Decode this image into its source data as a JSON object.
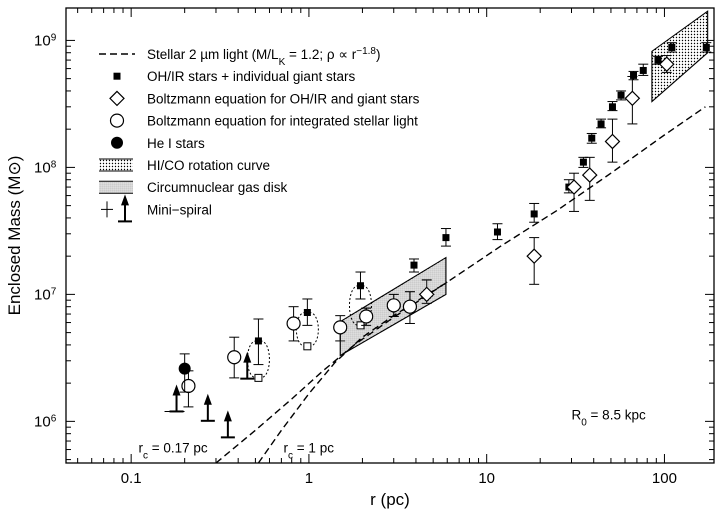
{
  "chart_data": {
    "type": "scatter",
    "xlabel": "r (pc)",
    "ylabel": "Enclosed Mass (M⊙)",
    "x_scale": "log",
    "y_scale": "log",
    "xlim": [
      0.043,
      190
    ],
    "ylim": [
      470000,
      1800000000
    ],
    "x_ticks": [
      {
        "value": 0.1,
        "label": "0.1"
      },
      {
        "value": 1,
        "label": "1"
      },
      {
        "value": 10,
        "label": "10"
      },
      {
        "value": 100,
        "label": "100"
      }
    ],
    "y_ticks": [
      {
        "value": 1000000,
        "base": "10",
        "exp": "6"
      },
      {
        "value": 10000000,
        "base": "10",
        "exp": "7"
      },
      {
        "value": 100000000,
        "base": "10",
        "exp": "8"
      },
      {
        "value": 1000000000,
        "base": "10",
        "exp": "9"
      }
    ],
    "legend": [
      {
        "symbol": "dashed-line",
        "label": "Stellar 2 µm light (M/L",
        "sub": "K",
        "label2": " = 1.2; ρ ∝ r",
        "sup": "−1.8",
        "label3": ")"
      },
      {
        "symbol": "filled-square",
        "label": "OH/IR stars + individual giant stars"
      },
      {
        "symbol": "open-diamond",
        "label": "Boltzmann equation for OH/IR and giant stars"
      },
      {
        "symbol": "open-circle",
        "label": "Boltzmann equation for integrated stellar light"
      },
      {
        "symbol": "filled-circle",
        "label": "He I stars"
      },
      {
        "symbol": "hatched-band",
        "label": "HI/CO rotation curve"
      },
      {
        "symbol": "dotted-band",
        "label": "Circumnuclear gas disk"
      },
      {
        "symbol": "mini-spiral",
        "label": "Mini−spiral"
      }
    ],
    "series": [
      {
        "symbol": "filled-square",
        "points": [
          {
            "x": 0.52,
            "y": 4300000,
            "ylo": 2800000,
            "yhi": 6400000
          },
          {
            "x": 0.98,
            "y": 7200000,
            "ylo": 5700000,
            "yhi": 9200000
          },
          {
            "x": 1.95,
            "y": 11700000,
            "ylo": 9200000,
            "yhi": 15000000
          },
          {
            "x": 3.9,
            "y": 17000000,
            "ylo": 15000000,
            "yhi": 19000000
          },
          {
            "x": 5.9,
            "y": 28000000,
            "ylo": 24000000,
            "yhi": 33000000
          },
          {
            "x": 11.5,
            "y": 31000000,
            "ylo": 27000000,
            "yhi": 36000000
          },
          {
            "x": 18.5,
            "y": 43000000,
            "ylo": 37000000,
            "yhi": 52000000
          },
          {
            "x": 29,
            "y": 70000000,
            "ylo": 63000000,
            "yhi": 80000000
          },
          {
            "x": 35,
            "y": 110000000,
            "ylo": 100000000,
            "yhi": 120000000
          },
          {
            "x": 39,
            "y": 170000000,
            "ylo": 155000000,
            "yhi": 185000000
          },
          {
            "x": 44,
            "y": 220000000,
            "ylo": 205000000,
            "yhi": 240000000
          },
          {
            "x": 51,
            "y": 300000000,
            "ylo": 280000000,
            "yhi": 330000000
          },
          {
            "x": 57,
            "y": 370000000,
            "ylo": 340000000,
            "yhi": 400000000
          },
          {
            "x": 67,
            "y": 530000000,
            "ylo": 490000000,
            "yhi": 570000000
          },
          {
            "x": 76,
            "y": 580000000,
            "ylo": 530000000,
            "yhi": 650000000
          },
          {
            "x": 92,
            "y": 700000000,
            "ylo": 650000000,
            "yhi": 750000000
          },
          {
            "x": 110,
            "y": 880000000,
            "ylo": 810000000,
            "yhi": 960000000
          },
          {
            "x": 172,
            "y": 880000000,
            "ylo": 810000000,
            "yhi": 960000000
          }
        ]
      },
      {
        "symbol": "open-square",
        "points": [
          {
            "x": 0.52,
            "y": 2200000
          },
          {
            "x": 0.98,
            "y": 3900000
          },
          {
            "x": 1.95,
            "y": 5700000
          }
        ]
      },
      {
        "symbol": "open-diamond",
        "points": [
          {
            "x": 4.6,
            "y": 10000000,
            "ylo": 8500000,
            "yhi": 13000000
          },
          {
            "x": 18.5,
            "y": 20000000,
            "ylo": 12000000,
            "yhi": 28000000
          },
          {
            "x": 31,
            "y": 70000000,
            "ylo": 45000000,
            "yhi": 90000000
          },
          {
            "x": 38,
            "y": 87000000,
            "ylo": 55000000,
            "yhi": 120000000
          },
          {
            "x": 51,
            "y": 160000000,
            "ylo": 110000000,
            "yhi": 240000000
          },
          {
            "x": 66,
            "y": 350000000,
            "ylo": 220000000,
            "yhi": 520000000
          },
          {
            "x": 103,
            "y": 650000000,
            "ylo": 560000000,
            "yhi": 760000000
          }
        ]
      },
      {
        "symbol": "open-circle",
        "points": [
          {
            "x": 0.21,
            "y": 1900000,
            "ylo": 1300000,
            "yhi": 2500000
          },
          {
            "x": 0.38,
            "y": 3200000,
            "ylo": 2200000,
            "yhi": 4600000
          },
          {
            "x": 0.82,
            "y": 5900000,
            "ylo": 4300000,
            "yhi": 8000000
          },
          {
            "x": 1.5,
            "y": 5500000,
            "ylo": 4300000,
            "yhi": 6800000
          },
          {
            "x": 2.1,
            "y": 6700000,
            "ylo": 5700000,
            "yhi": 7800000
          },
          {
            "x": 3.0,
            "y": 8200000,
            "ylo": 6700000,
            "yhi": 10000000
          },
          {
            "x": 3.7,
            "y": 8000000,
            "ylo": 5900000,
            "yhi": 10500000
          }
        ]
      },
      {
        "symbol": "filled-circle",
        "points": [
          {
            "x": 0.2,
            "y": 2600000,
            "ylo": 1700000,
            "yhi": 3400000
          }
        ]
      },
      {
        "symbol": "mini-spiral",
        "points": [
          {
            "x": 0.18,
            "y": 1600000
          },
          {
            "x": 0.27,
            "y": 1350000
          },
          {
            "x": 0.35,
            "y": 1000000
          },
          {
            "x": 0.45,
            "y": 2900000
          }
        ]
      }
    ],
    "stellar_light_curves": [
      {
        "label": "r",
        "sub": "c",
        "rest": " = 0.17 pc",
        "points": [
          [
            0.3,
            470000
          ],
          [
            0.5,
            850000
          ],
          [
            0.8,
            1500000
          ],
          [
            1.2,
            2500000
          ],
          [
            1.8,
            4000000
          ],
          [
            3,
            6600000
          ],
          [
            6,
            12500000
          ],
          [
            12,
            24000000
          ],
          [
            25,
            46000000
          ],
          [
            50,
            90000000
          ],
          [
            100,
            180000000
          ],
          [
            170,
            300000000
          ]
        ]
      },
      {
        "label": "r",
        "sub": "c",
        "rest": " = 1 pc",
        "points": [
          [
            0.52,
            470000
          ],
          [
            0.7,
            850000
          ],
          [
            1.0,
            1650000
          ],
          [
            1.4,
            2900000
          ],
          [
            2.0,
            4600000
          ],
          [
            3,
            6800000
          ],
          [
            6,
            12500000
          ]
        ]
      }
    ],
    "gas_bands": [
      {
        "symbol": "dotted-band",
        "name": "circumnuclear gas disk",
        "x": [
          1.5,
          5.9
        ],
        "y_low": [
          3300000,
          10000000
        ],
        "y_high": [
          6100000,
          19500000
        ]
      },
      {
        "symbol": "hatched-band",
        "name": "HI/CO rotation curve",
        "x": [
          85,
          175
        ],
        "y_low": [
          330000000,
          800000000
        ],
        "y_high": [
          820000000,
          1700000000
        ]
      }
    ],
    "annotations": [
      {
        "text": "R",
        "sub": "0",
        "rest": " = 8.5 kpc"
      }
    ],
    "grid": false,
    "legend_position": "top-left"
  }
}
